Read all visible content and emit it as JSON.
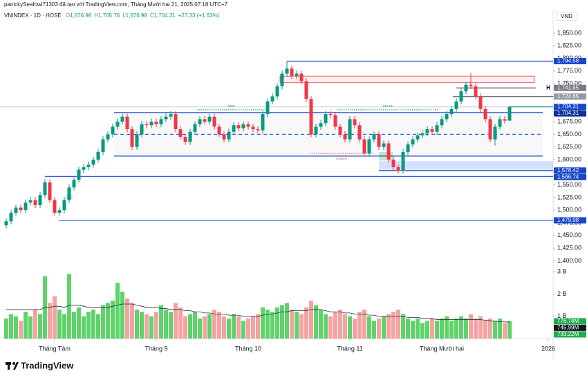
{
  "credit": "panickySeafowl71303 đã tạo với TradingView.com, Tháng Mười hai 21, 2025 07:18 UTC+7",
  "brand": "TradingView",
  "chart_data": {
    "type": "candlestick",
    "symbol": "VNINDEX · 1D · HOSE",
    "legend": [
      {
        "key": "O",
        "value": "1,676.98"
      },
      {
        "key": "H",
        "value": "1,705.76"
      },
      {
        "key": "L",
        "value": "1,676.98"
      },
      {
        "key": "C",
        "value": "1,704.31"
      }
    ],
    "change": "+27.33 (+1.63%)",
    "currency": "VND",
    "h_marker": "H",
    "up_color": "#089981",
    "down_color": "#f23645",
    "volume_up_color": "#5fd36a",
    "volume_down_color": "#f4a2a2",
    "volume_ma_color": "#2a2e39",
    "ylim": [
      1385.5,
      1896.4
    ],
    "yticks": [
      {
        "value": 1400,
        "label": "1,400.00"
      },
      {
        "value": 1425,
        "label": "1,425.00"
      },
      {
        "value": 1450,
        "label": "1,450.00"
      },
      {
        "value": 1475,
        "label": "1,475.00"
      },
      {
        "value": 1500,
        "label": "1,500.00"
      },
      {
        "value": 1525,
        "label": "1,525.00"
      },
      {
        "value": 1550,
        "label": "1,550.00"
      },
      {
        "value": 1575,
        "label": "1,575.00"
      },
      {
        "value": 1600,
        "label": "1,600.00"
      },
      {
        "value": 1625,
        "label": "1,625.00"
      },
      {
        "value": 1650,
        "label": "1,650.00"
      },
      {
        "value": 1675,
        "label": "1,675.00"
      },
      {
        "value": 1700,
        "label": "1,700.00"
      },
      {
        "value": 1725,
        "label": "1,725.00"
      },
      {
        "value": 1750,
        "label": "1,750.00"
      },
      {
        "value": 1775,
        "label": "1,775.00"
      },
      {
        "value": 1800,
        "label": "1,800.00"
      },
      {
        "value": 1825,
        "label": "1,825.00"
      },
      {
        "value": 1850,
        "label": "1,850.00"
      }
    ],
    "vlim": [
      0,
      3.16
    ],
    "vticks": [
      {
        "value": 1,
        "label": "1 B"
      },
      {
        "value": 2,
        "label": "2 B"
      },
      {
        "value": 3,
        "label": "3 B"
      }
    ],
    "xticks": [
      {
        "value": 10,
        "label": "Tháng Tám"
      },
      {
        "value": 31,
        "label": "Tháng 9"
      },
      {
        "value": 50,
        "label": "Tháng 10"
      },
      {
        "value": 71,
        "label": "Tháng 11"
      },
      {
        "value": 90,
        "label": "Tháng Mười hai"
      },
      {
        "value": 112,
        "label": "2026"
      }
    ],
    "open": [
      1470,
      1478,
      1495,
      1505,
      1500,
      1515,
      1520,
      1510,
      1530,
      1555,
      1520,
      1495,
      1500,
      1520,
      1545,
      1560,
      1580,
      1585,
      1590,
      1600,
      1615,
      1640,
      1650,
      1665,
      1675,
      1685,
      1660,
      1625,
      1650,
      1670,
      1668,
      1675,
      1670,
      1680,
      1685,
      1690,
      1660,
      1645,
      1635,
      1655,
      1670,
      1680,
      1675,
      1685,
      1665,
      1650,
      1640,
      1655,
      1668,
      1662,
      1670,
      1665,
      1660,
      1658,
      1690,
      1715,
      1725,
      1745,
      1770,
      1780,
      1765,
      1770,
      1755,
      1720,
      1650,
      1665,
      1672,
      1690,
      1688,
      1665,
      1650,
      1640,
      1680,
      1668,
      1640,
      1612,
      1640,
      1650,
      1625,
      1632,
      1600,
      1585,
      1578,
      1615,
      1630,
      1640,
      1648,
      1652,
      1660,
      1655,
      1668,
      1680,
      1690,
      1700,
      1715,
      1735,
      1748,
      1745,
      1725,
      1700,
      1680,
      1640,
      1665,
      1680,
      1676.98
    ],
    "high": [
      1484,
      1501,
      1511,
      1511,
      1521,
      1526,
      1526,
      1536,
      1561,
      1561,
      1526,
      1506,
      1526,
      1551,
      1566,
      1586,
      1591,
      1596,
      1606,
      1621,
      1646,
      1656,
      1671,
      1681,
      1691,
      1691,
      1666,
      1656,
      1676,
      1676,
      1681,
      1681,
      1686,
      1691,
      1696,
      1696,
      1666,
      1651,
      1661,
      1676,
      1686,
      1686,
      1691,
      1691,
      1671,
      1656,
      1661,
      1674,
      1674,
      1676,
      1676,
      1671,
      1666,
      1696,
      1721,
      1731,
      1751,
      1776,
      1794.58,
      1786,
      1776,
      1776,
      1761,
      1726,
      1671,
      1678,
      1696,
      1696,
      1694,
      1671,
      1656,
      1686,
      1686,
      1674,
      1646,
      1646,
      1656,
      1656,
      1638,
      1638,
      1606,
      1591,
      1621,
      1636,
      1646,
      1654,
      1658,
      1666,
      1666,
      1674,
      1686,
      1696,
      1706,
      1721,
      1741,
      1754,
      1771,
      1751,
      1731,
      1706,
      1686,
      1671,
      1686,
      1686,
      1705.76
    ],
    "low": [
      1464,
      1472,
      1489,
      1494,
      1494,
      1509,
      1504,
      1504,
      1524,
      1514,
      1489,
      1489,
      1494,
      1514,
      1539,
      1554,
      1574,
      1579,
      1584,
      1594,
      1609,
      1634,
      1644,
      1659,
      1669,
      1654,
      1619,
      1619,
      1644,
      1662,
      1662,
      1664,
      1664,
      1674,
      1679,
      1654,
      1639,
      1629,
      1629,
      1649,
      1664,
      1669,
      1669,
      1659,
      1644,
      1634,
      1634,
      1649,
      1656,
      1656,
      1659,
      1654,
      1652,
      1652,
      1684,
      1709,
      1719,
      1739,
      1764,
      1759,
      1759,
      1749,
      1714,
      1644,
      1644,
      1659,
      1666,
      1682,
      1659,
      1644,
      1634,
      1634,
      1662,
      1634,
      1606,
      1606,
      1634,
      1619,
      1619,
      1594,
      1579,
      1572,
      1572,
      1609,
      1624,
      1634,
      1642,
      1646,
      1649,
      1649,
      1662,
      1674,
      1684,
      1694,
      1709,
      1729,
      1739,
      1719,
      1694,
      1674,
      1634,
      1628,
      1659,
      1671,
      1676.98
    ],
    "close": [
      1478,
      1495,
      1505,
      1500,
      1515,
      1520,
      1510,
      1530,
      1555,
      1520,
      1495,
      1500,
      1520,
      1545,
      1560,
      1580,
      1585,
      1590,
      1600,
      1615,
      1640,
      1650,
      1665,
      1675,
      1685,
      1660,
      1625,
      1650,
      1670,
      1668,
      1675,
      1670,
      1680,
      1685,
      1690,
      1660,
      1645,
      1635,
      1655,
      1670,
      1680,
      1675,
      1685,
      1665,
      1650,
      1640,
      1655,
      1668,
      1662,
      1670,
      1665,
      1660,
      1658,
      1690,
      1715,
      1725,
      1745,
      1770,
      1780,
      1765,
      1770,
      1755,
      1720,
      1650,
      1665,
      1672,
      1690,
      1688,
      1665,
      1650,
      1640,
      1680,
      1668,
      1640,
      1612,
      1640,
      1650,
      1625,
      1632,
      1600,
      1585,
      1578,
      1615,
      1630,
      1640,
      1648,
      1652,
      1660,
      1655,
      1668,
      1680,
      1690,
      1700,
      1715,
      1735,
      1748,
      1745,
      1725,
      1700,
      1680,
      1640,
      1665,
      1680,
      1676.98,
      1704.31
    ],
    "volume": [
      0.9,
      1.1,
      1.0,
      0.8,
      1.2,
      1.0,
      1.3,
      1.1,
      2.8,
      1.6,
      1.9,
      1.3,
      1.1,
      2.9,
      1.2,
      1.4,
      1.0,
      1.2,
      1.3,
      1.1,
      1.5,
      1.6,
      1.7,
      2.5,
      2.1,
      1.8,
      1.6,
      1.3,
      1.2,
      1.1,
      1.0,
      1.2,
      1.5,
      1.3,
      1.2,
      1.6,
      1.4,
      1.0,
      1.1,
      1.2,
      0.9,
      1.0,
      1.1,
      1.3,
      1.2,
      1.0,
      0.9,
      1.1,
      1.0,
      0.8,
      0.9,
      1.0,
      1.1,
      1.4,
      1.3,
      1.2,
      1.4,
      1.5,
      1.6,
      1.3,
      1.2,
      1.1,
      1.4,
      1.7,
      1.5,
      1.3,
      1.1,
      1.0,
      1.2,
      1.3,
      1.1,
      1.0,
      0.9,
      1.2,
      1.3,
      1.0,
      0.8,
      0.9,
      1.0,
      1.1,
      1.2,
      1.3,
      1.1,
      0.9,
      0.8,
      0.9,
      0.7,
      0.8,
      0.9,
      0.8,
      0.9,
      1.0,
      0.8,
      0.9,
      1.0,
      0.9,
      1.1,
      0.9,
      1.0,
      0.8,
      0.9,
      0.8,
      0.9,
      0.7,
      0.77674
    ],
    "volume_ma": [
      1.3,
      1.3,
      1.3,
      1.3,
      1.3,
      1.3,
      1.3,
      1.3,
      1.4,
      1.4,
      1.45,
      1.45,
      1.4,
      1.5,
      1.5,
      1.5,
      1.45,
      1.4,
      1.4,
      1.4,
      1.4,
      1.4,
      1.45,
      1.5,
      1.55,
      1.55,
      1.55,
      1.5,
      1.45,
      1.4,
      1.4,
      1.4,
      1.35,
      1.35,
      1.3,
      1.3,
      1.3,
      1.25,
      1.25,
      1.2,
      1.2,
      1.15,
      1.15,
      1.1,
      1.1,
      1.1,
      1.05,
      1.05,
      1.05,
      1.0,
      1.0,
      1.0,
      1.0,
      1.05,
      1.1,
      1.1,
      1.15,
      1.2,
      1.2,
      1.25,
      1.25,
      1.25,
      1.25,
      1.3,
      1.3,
      1.3,
      1.25,
      1.2,
      1.2,
      1.2,
      1.15,
      1.15,
      1.1,
      1.1,
      1.1,
      1.05,
      1.05,
      1.0,
      1.0,
      1.0,
      1.0,
      1.0,
      1.0,
      0.95,
      0.95,
      0.95,
      0.9,
      0.9,
      0.9,
      0.85,
      0.85,
      0.85,
      0.85,
      0.85,
      0.85,
      0.85,
      0.85,
      0.85,
      0.85,
      0.82,
      0.8,
      0.78,
      0.76,
      0.75,
      0.74599
    ],
    "volume_labels": [
      {
        "value": 0.77674,
        "label": "776.74M",
        "color": "#22ab4c"
      },
      {
        "value": 0.74599,
        "label": "745.99M",
        "color": "#131722"
      },
      {
        "value": 0.73322,
        "label": "733.22M",
        "color": "#22ab4c"
      }
    ],
    "lines": [
      {
        "value": 1794.58,
        "label": "1,794.58",
        "color": "#1848cc",
        "label_bg": "#1848cc"
      },
      {
        "value": 1741.65,
        "label": "1,741.65",
        "color": "#5d606b",
        "label_bg": "#787b86"
      },
      {
        "value": 1724.65,
        "label": "1,724.65",
        "color": "#5d606b",
        "label_bg": "#9598a1"
      },
      {
        "value": 1704.31,
        "label": "1,704.31",
        "color": "#d1d4dc",
        "label_bg": "#1848cc"
      },
      {
        "value": 1704.31,
        "label": "1,704.31",
        "color": "#089981",
        "label_bg": "#0c3299"
      },
      {
        "value": 1693,
        "color": "#1848cc"
      },
      {
        "value": 1650,
        "color": "#2962ff",
        "dashed": true
      },
      {
        "value": 1607,
        "color": "#1848cc"
      },
      {
        "value": 1578.42,
        "label": "1,578.42",
        "color": "#1848cc",
        "label_bg": "#1848cc"
      },
      {
        "value": 1566.74,
        "label": "1,566.74",
        "color": "#1848cc",
        "label_bg": "#1848cc"
      },
      {
        "value": 1479.98,
        "label": "1,479.98",
        "color": "#1848cc",
        "label_bg": "#1848cc"
      }
    ],
    "zones": [
      {
        "top": 1765,
        "bottom": 1752,
        "fill": "rgba(242,54,69,0.08)",
        "stroke": "#f23645"
      },
      {
        "top": 1597,
        "bottom": 1580,
        "fill": "rgba(41,98,255,0.2)",
        "stroke": "none"
      },
      {
        "top": 1693,
        "bottom": 1607,
        "fill": "rgba(120,123,134,0.05)",
        "stroke": "none"
      },
      {
        "top": 1615,
        "bottom": 1598,
        "fill": "rgba(76,175,80,0.3)",
        "stroke": "none"
      },
      {
        "top": 1530,
        "bottom": 1522,
        "fill": "rgba(76,175,80,0.3)",
        "stroke": "none"
      }
    ],
    "annotations": [
      {
        "text": "BOS",
        "value": 1693,
        "color": "#089981"
      },
      {
        "text": "CHoCH",
        "value": 1693,
        "color": "#089981"
      },
      {
        "text": "CHoCH",
        "value": 1607,
        "color": "#f23645"
      }
    ]
  }
}
